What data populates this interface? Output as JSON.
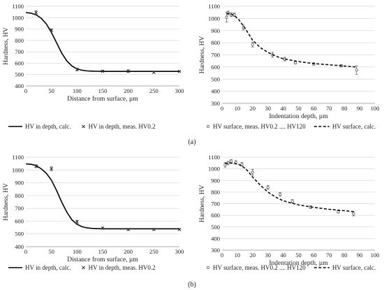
{
  "chart_data": [
    {
      "type": "line",
      "panel": "a-left",
      "xlabel": "Distance from surface, µm",
      "ylabel": "Hardness, HV",
      "xlim": [
        0,
        300
      ],
      "ylim": [
        400,
        1100
      ],
      "xticks": [
        0,
        50,
        100,
        150,
        200,
        250,
        300
      ],
      "yticks": [
        400,
        500,
        600,
        700,
        800,
        900,
        1000,
        1100
      ],
      "grid": "horizontal",
      "legend_position": "bottom",
      "series": [
        {
          "name": "HV in depth, calc.",
          "style": "solid-line",
          "x": [
            0,
            10,
            20,
            30,
            40,
            50,
            60,
            70,
            80,
            90,
            100,
            110,
            120,
            130,
            140,
            150,
            175,
            200,
            250,
            300
          ],
          "y": [
            1045,
            1040,
            1025,
            995,
            945,
            870,
            780,
            690,
            620,
            575,
            550,
            538,
            532,
            530,
            529,
            528,
            528,
            528,
            528,
            528
          ]
        },
        {
          "name": "HV in depth, meas. HV0.2",
          "style": "x-markers",
          "x": [
            20,
            50,
            100,
            150,
            200,
            250,
            300
          ],
          "y": [
            1045,
            890,
            545,
            530,
            530,
            520,
            528
          ],
          "err": [
            15,
            12,
            12,
            8,
            12,
            6,
            5
          ]
        }
      ]
    },
    {
      "type": "scatter",
      "panel": "a-right",
      "xlabel": "Indentation depth, µm",
      "ylabel": "Hardness, HV",
      "xlim": [
        0,
        100
      ],
      "ylim": [
        300,
        1100
      ],
      "xticks": [
        0,
        10,
        20,
        30,
        40,
        50,
        60,
        70,
        80,
        90,
        100
      ],
      "yticks": [
        300,
        400,
        500,
        600,
        700,
        800,
        900,
        1000,
        1100
      ],
      "grid": "horizontal",
      "legend_position": "bottom",
      "series": [
        {
          "name": "HV surface, meas. HV0.2 .... HV120",
          "style": "circle-markers",
          "x": [
            3,
            4,
            6,
            8,
            14,
            20,
            33,
            41,
            48,
            60,
            78,
            88
          ],
          "y": [
            1010,
            1045,
            1030,
            1030,
            925,
            785,
            700,
            665,
            635,
            625,
            610,
            575
          ],
          "err": [
            40,
            15,
            15,
            15,
            20,
            20,
            20,
            15,
            10,
            10,
            10,
            35
          ]
        },
        {
          "name": "HV surface, calc.",
          "style": "dashed-line",
          "x": [
            3,
            5,
            8,
            11,
            15,
            20,
            25,
            30,
            35,
            40,
            50,
            60,
            70,
            80,
            88
          ],
          "y": [
            1040,
            1040,
            1025,
            990,
            920,
            820,
            760,
            720,
            690,
            668,
            645,
            628,
            618,
            608,
            600
          ]
        }
      ]
    },
    {
      "type": "line",
      "panel": "b-left",
      "xlabel": "Distance from surface, µm",
      "ylabel": "Hardness, HV",
      "xlim": [
        0,
        300
      ],
      "ylim": [
        400,
        1100
      ],
      "xticks": [
        0,
        50,
        100,
        150,
        200,
        250,
        300
      ],
      "yticks": [
        400,
        500,
        600,
        700,
        800,
        900,
        1000,
        1100
      ],
      "grid": "horizontal",
      "legend_position": "bottom",
      "series": [
        {
          "name": "HV in depth, calc.",
          "style": "solid-line",
          "x": [
            0,
            10,
            20,
            30,
            40,
            50,
            60,
            70,
            80,
            90,
            100,
            110,
            120,
            130,
            140,
            150,
            175,
            200,
            250,
            300
          ],
          "y": [
            1048,
            1045,
            1035,
            1010,
            975,
            920,
            840,
            750,
            670,
            610,
            575,
            556,
            547,
            543,
            541,
            540,
            540,
            540,
            540,
            540
          ]
        },
        {
          "name": "HV in depth, meas. HV0.2",
          "style": "x-markers",
          "x": [
            20,
            50,
            100,
            150,
            200,
            250,
            300
          ],
          "y": [
            1030,
            1010,
            595,
            545,
            535,
            535,
            535
          ],
          "err": [
            12,
            15,
            12,
            8,
            8,
            6,
            5
          ]
        }
      ]
    },
    {
      "type": "scatter",
      "panel": "b-right",
      "xlabel": "Indentation depth, µm",
      "ylabel": "Hardness, HV",
      "xlim": [
        0,
        100
      ],
      "ylim": [
        300,
        1100
      ],
      "xticks": [
        0,
        10,
        20,
        30,
        40,
        50,
        60,
        70,
        80,
        90,
        100
      ],
      "yticks": [
        300,
        400,
        500,
        600,
        700,
        800,
        900,
        1000,
        1100
      ],
      "grid": "horizontal",
      "legend_position": "bottom",
      "series": [
        {
          "name": "HV surface, meas. HV0.2 .... HV120",
          "style": "circle-markers",
          "x": [
            2,
            4,
            6,
            9,
            13,
            20,
            30,
            38,
            46,
            58,
            76,
            86
          ],
          "y": [
            1035,
            1050,
            1065,
            1055,
            1040,
            970,
            840,
            780,
            720,
            670,
            630,
            615
          ],
          "err": [
            20,
            15,
            15,
            15,
            15,
            25,
            15,
            15,
            15,
            12,
            10,
            20
          ]
        },
        {
          "name": "HV surface, calc.",
          "style": "dashed-line",
          "x": [
            2,
            5,
            8,
            11,
            14,
            17,
            20,
            25,
            30,
            35,
            40,
            50,
            60,
            70,
            80,
            86
          ],
          "y": [
            1045,
            1050,
            1048,
            1038,
            1015,
            980,
            930,
            860,
            800,
            758,
            725,
            690,
            668,
            652,
            640,
            632
          ]
        }
      ]
    }
  ],
  "panel_labels": [
    "(a)",
    "(b)"
  ]
}
